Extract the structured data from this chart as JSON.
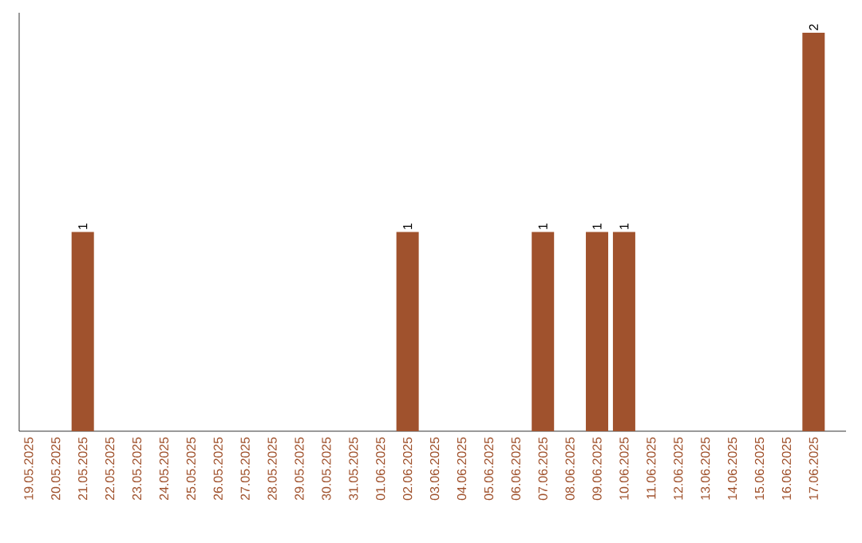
{
  "chart_data": {
    "type": "bar",
    "color": "#a0522d",
    "categories": [
      "19.05.2025",
      "20.05.2025",
      "21.05.2025",
      "22.05.2025",
      "23.05.2025",
      "24.05.2025",
      "25.05.2025",
      "26.05.2025",
      "27.05.2025",
      "28.05.2025",
      "29.05.2025",
      "30.05.2025",
      "31.05.2025",
      "01.06.2025",
      "02.06.2025",
      "03.06.2025",
      "04.06.2025",
      "05.06.2025",
      "06.06.2025",
      "07.06.2025",
      "08.06.2025",
      "09.06.2025",
      "10.06.2025",
      "11.06.2025",
      "12.06.2025",
      "13.06.2025",
      "14.06.2025",
      "15.06.2025",
      "16.06.2025",
      "17.06.2025"
    ],
    "values": [
      0,
      0,
      1,
      0,
      0,
      0,
      0,
      0,
      0,
      0,
      0,
      0,
      0,
      0,
      1,
      0,
      0,
      0,
      0,
      1,
      0,
      1,
      1,
      0,
      0,
      0,
      0,
      0,
      0,
      2
    ],
    "value_labels": [
      null,
      null,
      "1",
      null,
      null,
      null,
      null,
      null,
      null,
      null,
      null,
      null,
      null,
      null,
      "1",
      null,
      null,
      null,
      null,
      "1",
      null,
      "1",
      "1",
      null,
      null,
      null,
      null,
      null,
      null,
      "2"
    ],
    "tick_labels": "x"
  }
}
